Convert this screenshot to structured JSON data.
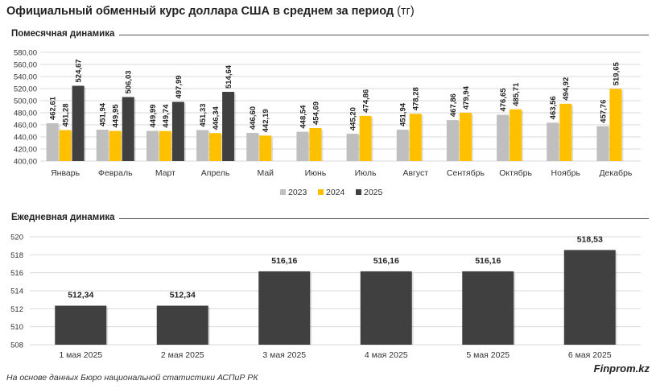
{
  "title": "Официальный обменный курс доллара США в среднем за период",
  "title_unit": "(тг)",
  "footer": "На основе данных Бюро национальной статистики АСПиР РК",
  "brand": "Finprom.kz",
  "chart_data": [
    {
      "type": "bar",
      "title": "Помесячная динамика",
      "categories": [
        "Январь",
        "Февраль",
        "Март",
        "Апрель",
        "Май",
        "Июнь",
        "Июль",
        "Август",
        "Сентябрь",
        "Октябрь",
        "Ноябрь",
        "Декабрь"
      ],
      "series": [
        {
          "name": "2023",
          "color": "#bfbfbf",
          "values": [
            462.61,
            451.94,
            449.99,
            451.33,
            446.6,
            448.54,
            445.2,
            451.94,
            467.86,
            476.65,
            463.56,
            457.76
          ],
          "labels": [
            "462,61",
            "451,94",
            "449,99",
            "451,33",
            "446,60",
            "448,54",
            "445,20",
            "451,94",
            "467,86",
            "476,65",
            "463,56",
            "457,76"
          ]
        },
        {
          "name": "2024",
          "color": "#ffc000",
          "values": [
            451.28,
            449.95,
            449.74,
            446.34,
            442.19,
            454.69,
            474.86,
            478.28,
            479.94,
            485.71,
            494.92,
            519.65
          ],
          "labels": [
            "451,28",
            "449,95",
            "449,74",
            "446,34",
            "442,19",
            "454,69",
            "474,86",
            "478,28",
            "479,94",
            "485,71",
            "494,92",
            "519,65"
          ]
        },
        {
          "name": "2025",
          "color": "#404040",
          "values": [
            524.67,
            506.03,
            497.99,
            514.64,
            null,
            null,
            null,
            null,
            null,
            null,
            null,
            null
          ],
          "labels": [
            "524,67",
            "506,03",
            "497,99",
            "514,64",
            "",
            "",
            "",
            "",
            "",
            "",
            "",
            ""
          ]
        }
      ],
      "ylim": [
        400,
        580
      ],
      "yticks": [
        "400,00",
        "420,00",
        "440,00",
        "460,00",
        "480,00",
        "500,00",
        "520,00",
        "540,00",
        "560,00",
        "580,00"
      ],
      "grid": true,
      "legend": "bottom"
    },
    {
      "type": "bar",
      "title": "Ежедневная динамика",
      "categories": [
        "1 мая 2025",
        "2 мая 2025",
        "3 мая 2025",
        "4 мая 2025",
        "5 мая 2025",
        "6 мая 2025"
      ],
      "values": [
        512.34,
        512.34,
        516.16,
        516.16,
        516.16,
        518.53
      ],
      "labels": [
        "512,34",
        "512,34",
        "516,16",
        "516,16",
        "516,16",
        "518,53"
      ],
      "color": "#404040",
      "ylim": [
        508,
        520
      ],
      "yticks": [
        "508",
        "510",
        "512",
        "514",
        "516",
        "518",
        "520"
      ],
      "grid": true
    }
  ]
}
